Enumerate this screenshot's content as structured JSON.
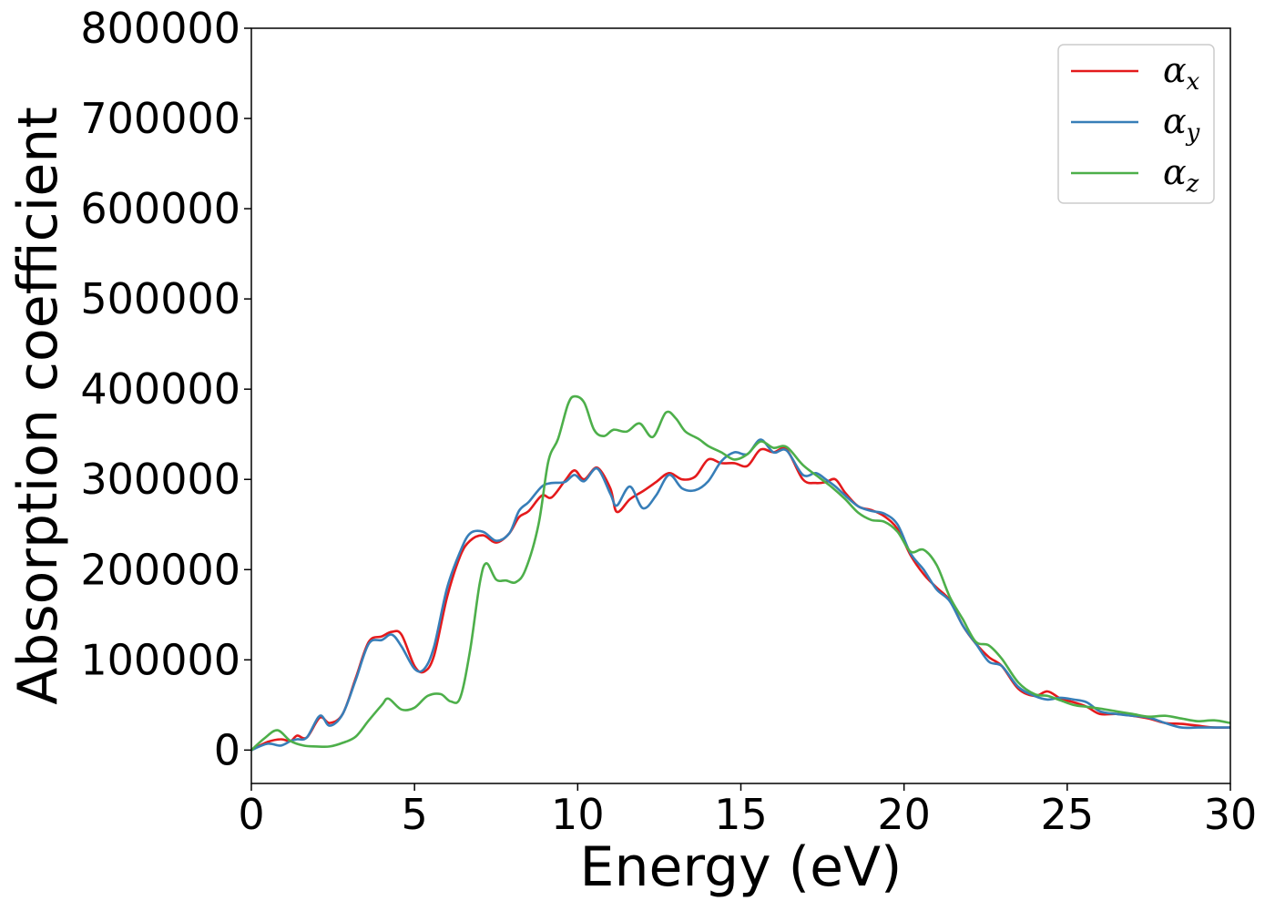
{
  "chart_data": {
    "type": "line",
    "title": "",
    "xlabel": "Energy (eV)",
    "ylabel": "Absorption coefficient",
    "xlim": [
      0,
      30
    ],
    "ylim": [
      -37000,
      800000
    ],
    "xticks": [
      0,
      5,
      10,
      15,
      20,
      25,
      30
    ],
    "xtick_labels": [
      "0",
      "5",
      "10",
      "15",
      "20",
      "25",
      "30"
    ],
    "yticks": [
      0,
      100000,
      200000,
      300000,
      400000,
      500000,
      600000,
      700000,
      800000
    ],
    "ytick_labels": [
      "0",
      "100000",
      "200000",
      "300000",
      "400000",
      "500000",
      "600000",
      "700000",
      "800000"
    ],
    "grid": false,
    "legend_position": "top-right",
    "series": [
      {
        "name": "αx",
        "symbol": "α",
        "subscript": "x",
        "color": "#e41a1c",
        "points": [
          [
            0,
            0
          ],
          [
            0.5,
            9000
          ],
          [
            0.9,
            12000
          ],
          [
            1.2,
            10000
          ],
          [
            1.4,
            16000
          ],
          [
            1.7,
            14000
          ],
          [
            2.1,
            36000
          ],
          [
            2.4,
            30000
          ],
          [
            2.8,
            40000
          ],
          [
            3.2,
            80000
          ],
          [
            3.6,
            120000
          ],
          [
            4.0,
            126000
          ],
          [
            4.3,
            131000
          ],
          [
            4.6,
            128000
          ],
          [
            5.0,
            93000
          ],
          [
            5.3,
            87000
          ],
          [
            5.6,
            105000
          ],
          [
            6.0,
            170000
          ],
          [
            6.4,
            215000
          ],
          [
            6.7,
            232000
          ],
          [
            7.1,
            238000
          ],
          [
            7.5,
            230000
          ],
          [
            7.9,
            240000
          ],
          [
            8.2,
            258000
          ],
          [
            8.5,
            265000
          ],
          [
            8.9,
            282000
          ],
          [
            9.2,
            280000
          ],
          [
            9.6,
            298000
          ],
          [
            9.9,
            310000
          ],
          [
            10.2,
            300000
          ],
          [
            10.6,
            313000
          ],
          [
            11.0,
            290000
          ],
          [
            11.2,
            264000
          ],
          [
            11.6,
            278000
          ],
          [
            12.0,
            287000
          ],
          [
            12.4,
            297000
          ],
          [
            12.8,
            307000
          ],
          [
            13.2,
            300000
          ],
          [
            13.6,
            303000
          ],
          [
            14.0,
            322000
          ],
          [
            14.4,
            318000
          ],
          [
            14.8,
            318000
          ],
          [
            15.2,
            315000
          ],
          [
            15.6,
            333000
          ],
          [
            16.0,
            330000
          ],
          [
            16.4,
            333000
          ],
          [
            16.9,
            300000
          ],
          [
            17.3,
            296000
          ],
          [
            17.6,
            297000
          ],
          [
            17.9,
            300000
          ],
          [
            18.2,
            285000
          ],
          [
            18.6,
            270000
          ],
          [
            19.0,
            266000
          ],
          [
            19.4,
            259000
          ],
          [
            19.8,
            245000
          ],
          [
            20.2,
            216000
          ],
          [
            20.6,
            195000
          ],
          [
            21.0,
            180000
          ],
          [
            21.4,
            166000
          ],
          [
            21.8,
            138000
          ],
          [
            22.2,
            118000
          ],
          [
            22.6,
            103000
          ],
          [
            23.0,
            93000
          ],
          [
            23.5,
            68000
          ],
          [
            24.0,
            60000
          ],
          [
            24.4,
            65000
          ],
          [
            24.8,
            57000
          ],
          [
            25.2,
            53000
          ],
          [
            25.6,
            48000
          ],
          [
            26.0,
            40000
          ],
          [
            26.5,
            40000
          ],
          [
            27.0,
            38000
          ],
          [
            27.5,
            35000
          ],
          [
            28.0,
            30000
          ],
          [
            28.5,
            29000
          ],
          [
            29.0,
            27000
          ],
          [
            29.5,
            25000
          ],
          [
            30,
            25000
          ]
        ]
      },
      {
        "name": "αy",
        "symbol": "α",
        "subscript": "y",
        "color": "#377eb8",
        "points": [
          [
            0,
            0
          ],
          [
            0.5,
            7000
          ],
          [
            0.9,
            5000
          ],
          [
            1.2,
            10000
          ],
          [
            1.4,
            12000
          ],
          [
            1.7,
            14000
          ],
          [
            2.1,
            38000
          ],
          [
            2.4,
            27000
          ],
          [
            2.8,
            40000
          ],
          [
            3.2,
            78000
          ],
          [
            3.6,
            118000
          ],
          [
            4.0,
            122000
          ],
          [
            4.3,
            128000
          ],
          [
            4.6,
            115000
          ],
          [
            5.0,
            90000
          ],
          [
            5.3,
            90000
          ],
          [
            5.6,
            115000
          ],
          [
            6.0,
            180000
          ],
          [
            6.4,
            220000
          ],
          [
            6.7,
            240000
          ],
          [
            7.1,
            242000
          ],
          [
            7.5,
            232000
          ],
          [
            7.9,
            240000
          ],
          [
            8.2,
            265000
          ],
          [
            8.5,
            275000
          ],
          [
            8.9,
            292000
          ],
          [
            9.2,
            296000
          ],
          [
            9.6,
            297000
          ],
          [
            9.9,
            305000
          ],
          [
            10.2,
            298000
          ],
          [
            10.6,
            312000
          ],
          [
            11.0,
            284000
          ],
          [
            11.2,
            271000
          ],
          [
            11.6,
            292000
          ],
          [
            12.0,
            268000
          ],
          [
            12.4,
            282000
          ],
          [
            12.8,
            305000
          ],
          [
            13.2,
            290000
          ],
          [
            13.6,
            288000
          ],
          [
            14.0,
            298000
          ],
          [
            14.4,
            320000
          ],
          [
            14.8,
            330000
          ],
          [
            15.2,
            328000
          ],
          [
            15.6,
            344000
          ],
          [
            16.0,
            330000
          ],
          [
            16.4,
            332000
          ],
          [
            16.9,
            305000
          ],
          [
            17.3,
            307000
          ],
          [
            17.6,
            300000
          ],
          [
            17.9,
            292000
          ],
          [
            18.2,
            282000
          ],
          [
            18.6,
            270000
          ],
          [
            19.0,
            265000
          ],
          [
            19.4,
            262000
          ],
          [
            19.8,
            250000
          ],
          [
            20.2,
            218000
          ],
          [
            20.6,
            200000
          ],
          [
            21.0,
            178000
          ],
          [
            21.4,
            165000
          ],
          [
            21.8,
            138000
          ],
          [
            22.2,
            118000
          ],
          [
            22.6,
            98000
          ],
          [
            23.0,
            93000
          ],
          [
            23.5,
            70000
          ],
          [
            24.0,
            60000
          ],
          [
            24.4,
            56000
          ],
          [
            24.8,
            58000
          ],
          [
            25.2,
            56000
          ],
          [
            25.6,
            53000
          ],
          [
            26.0,
            43000
          ],
          [
            26.5,
            40000
          ],
          [
            27.0,
            38000
          ],
          [
            27.5,
            36000
          ],
          [
            28.0,
            30000
          ],
          [
            28.5,
            25000
          ],
          [
            29.0,
            25000
          ],
          [
            29.5,
            25000
          ],
          [
            30,
            25000
          ]
        ]
      },
      {
        "name": "αz",
        "symbol": "α",
        "subscript": "z",
        "color": "#4daf4a",
        "points": [
          [
            0,
            0
          ],
          [
            0.4,
            13000
          ],
          [
            0.8,
            22000
          ],
          [
            1.2,
            10000
          ],
          [
            1.6,
            5000
          ],
          [
            2.0,
            4000
          ],
          [
            2.4,
            4000
          ],
          [
            2.8,
            8000
          ],
          [
            3.2,
            15000
          ],
          [
            3.6,
            33000
          ],
          [
            4.0,
            50000
          ],
          [
            4.2,
            57000
          ],
          [
            4.6,
            45000
          ],
          [
            5.0,
            47000
          ],
          [
            5.4,
            60000
          ],
          [
            5.8,
            62000
          ],
          [
            6.1,
            54000
          ],
          [
            6.4,
            58000
          ],
          [
            6.7,
            110000
          ],
          [
            7.0,
            185000
          ],
          [
            7.2,
            207000
          ],
          [
            7.5,
            189000
          ],
          [
            7.8,
            188000
          ],
          [
            8.1,
            186000
          ],
          [
            8.4,
            200000
          ],
          [
            8.8,
            250000
          ],
          [
            9.1,
            320000
          ],
          [
            9.4,
            345000
          ],
          [
            9.7,
            383000
          ],
          [
            9.9,
            392000
          ],
          [
            10.2,
            385000
          ],
          [
            10.5,
            355000
          ],
          [
            10.8,
            348000
          ],
          [
            11.1,
            355000
          ],
          [
            11.5,
            353000
          ],
          [
            11.9,
            362000
          ],
          [
            12.3,
            347000
          ],
          [
            12.7,
            374000
          ],
          [
            13.0,
            368000
          ],
          [
            13.3,
            353000
          ],
          [
            13.7,
            345000
          ],
          [
            14.0,
            337000
          ],
          [
            14.4,
            330000
          ],
          [
            14.8,
            322000
          ],
          [
            15.2,
            328000
          ],
          [
            15.6,
            342000
          ],
          [
            16.0,
            335000
          ],
          [
            16.4,
            336000
          ],
          [
            16.9,
            316000
          ],
          [
            17.4,
            302000
          ],
          [
            17.8,
            291000
          ],
          [
            18.2,
            278000
          ],
          [
            18.6,
            263000
          ],
          [
            19.0,
            255000
          ],
          [
            19.4,
            253000
          ],
          [
            19.8,
            242000
          ],
          [
            20.2,
            220000
          ],
          [
            20.6,
            222000
          ],
          [
            21.0,
            205000
          ],
          [
            21.4,
            170000
          ],
          [
            21.8,
            145000
          ],
          [
            22.2,
            120000
          ],
          [
            22.6,
            116000
          ],
          [
            23.0,
            101000
          ],
          [
            23.5,
            75000
          ],
          [
            24.0,
            62000
          ],
          [
            24.4,
            60000
          ],
          [
            24.8,
            55000
          ],
          [
            25.2,
            50000
          ],
          [
            25.6,
            48000
          ],
          [
            26.0,
            46000
          ],
          [
            26.5,
            43000
          ],
          [
            27.0,
            40000
          ],
          [
            27.5,
            37000
          ],
          [
            28.0,
            38000
          ],
          [
            28.5,
            35000
          ],
          [
            29.0,
            32000
          ],
          [
            29.5,
            33000
          ],
          [
            30,
            30000
          ]
        ]
      }
    ]
  }
}
